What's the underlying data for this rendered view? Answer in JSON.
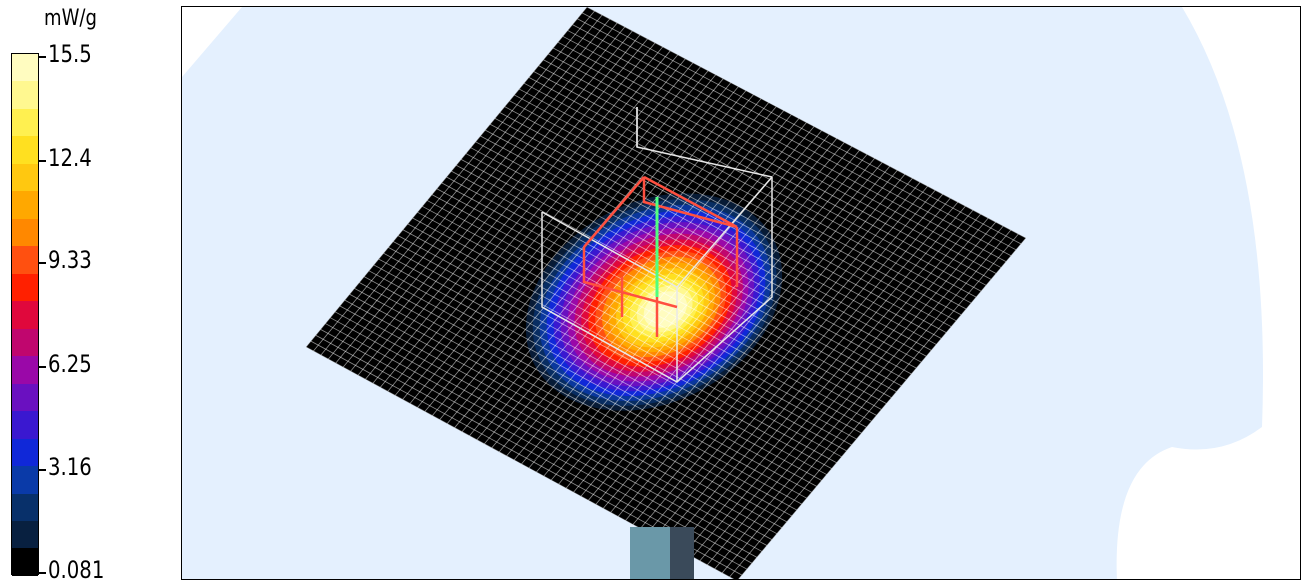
{
  "chart_data": {
    "type": "heatmap",
    "title": "",
    "colorbar": {
      "unit": "mW/g",
      "min": 0.081,
      "max": 15.5,
      "tick_labels": [
        "15.5",
        "12.4",
        "9.33",
        "6.25",
        "3.16",
        "0.081"
      ],
      "tick_values": [
        15.5,
        12.4,
        9.33,
        6.25,
        3.16,
        0.081
      ],
      "colors": [
        "#000000",
        "#082040",
        "#08306a",
        "#0a3aa8",
        "#1028d8",
        "#3a18d0",
        "#6a10c0",
        "#9a08a8",
        "#c0066e",
        "#e0083c",
        "#ff2000",
        "#ff5010",
        "#ff8800",
        "#ffa800",
        "#ffc810",
        "#ffe020",
        "#fff050",
        "#fff890",
        "#fffcc0"
      ]
    },
    "background_colors": {
      "sky": "#e4f0fe",
      "cloud": "#ffffff",
      "plate": "#000000",
      "grid": "#ffffff"
    }
  }
}
